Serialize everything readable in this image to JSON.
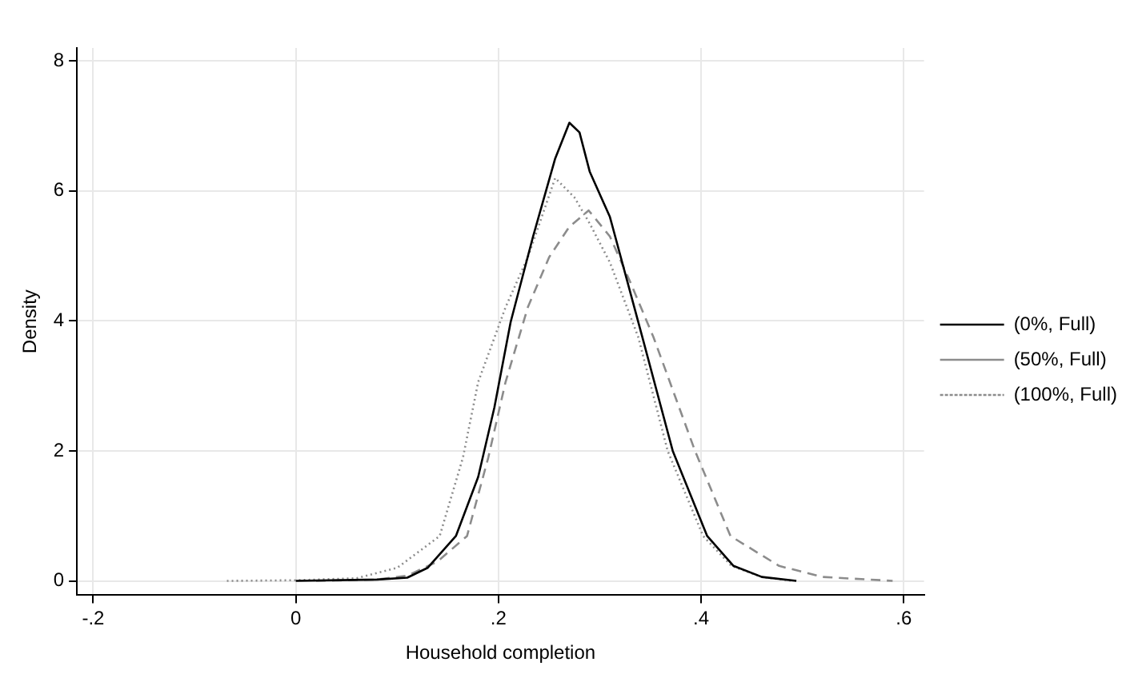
{
  "chart_data": {
    "type": "line",
    "xlabel": "Household completion",
    "ylabel": "Density",
    "xlim": [
      -0.216,
      0.62
    ],
    "xticks": [
      {
        "value": -0.2,
        "label": "-.2"
      },
      0,
      {
        "value": 0.2,
        "label": ".2"
      },
      {
        "value": 0.4,
        "label": ".4"
      },
      {
        "value": 0.6,
        "label": ".6"
      }
    ],
    "ylim": [
      -0.22,
      8.2
    ],
    "yticks": [
      0,
      2,
      4,
      6,
      8
    ],
    "grid": true,
    "legend": "right",
    "marker": "none",
    "series": [
      {
        "name": "(0%, Full)",
        "color": "#000000",
        "line_style": "solid",
        "x": [
          0.0,
          0.08,
          0.11,
          0.13,
          0.158,
          0.18,
          0.196,
          0.212,
          0.234,
          0.256,
          0.27,
          0.28,
          0.29,
          0.31,
          0.342,
          0.372,
          0.406,
          0.432,
          0.46,
          0.494
        ],
        "values": [
          0,
          0.02,
          0.05,
          0.2,
          0.69,
          1.6,
          2.67,
          3.98,
          5.29,
          6.5,
          7.05,
          6.9,
          6.3,
          5.6,
          3.75,
          2,
          0.69,
          0.23,
          0.06,
          0
        ]
      },
      {
        "name": "(50%, Full)",
        "color": "#8c8c8c",
        "line_style": "dashed",
        "x": [
          0.02,
          0.08,
          0.11,
          0.14,
          0.169,
          0.19,
          0.207,
          0.229,
          0.25,
          0.27,
          0.289,
          0.31,
          0.33,
          0.353,
          0.394,
          0.429,
          0.477,
          0.52,
          0.589
        ],
        "values": [
          0,
          0.02,
          0.08,
          0.3,
          0.69,
          1.9,
          3.06,
          4.21,
          4.98,
          5.45,
          5.7,
          5.3,
          4.6,
          3.75,
          2,
          0.69,
          0.23,
          0.06,
          0
        ]
      },
      {
        "name": "(100%, Full)",
        "color": "#8c8c8c",
        "line_style": "dotted",
        "x": [
          -0.068,
          0.0,
          0.06,
          0.1,
          0.142,
          0.165,
          0.18,
          0.207,
          0.229,
          0.256,
          0.275,
          0.29,
          0.31,
          0.338,
          0.367,
          0.402,
          0.43,
          0.46,
          0.49
        ],
        "values": [
          0,
          0.01,
          0.04,
          0.2,
          0.69,
          1.9,
          3.06,
          4.21,
          4.98,
          6.2,
          5.9,
          5.5,
          4.9,
          3.75,
          2,
          0.69,
          0.23,
          0.06,
          0
        ]
      }
    ]
  }
}
